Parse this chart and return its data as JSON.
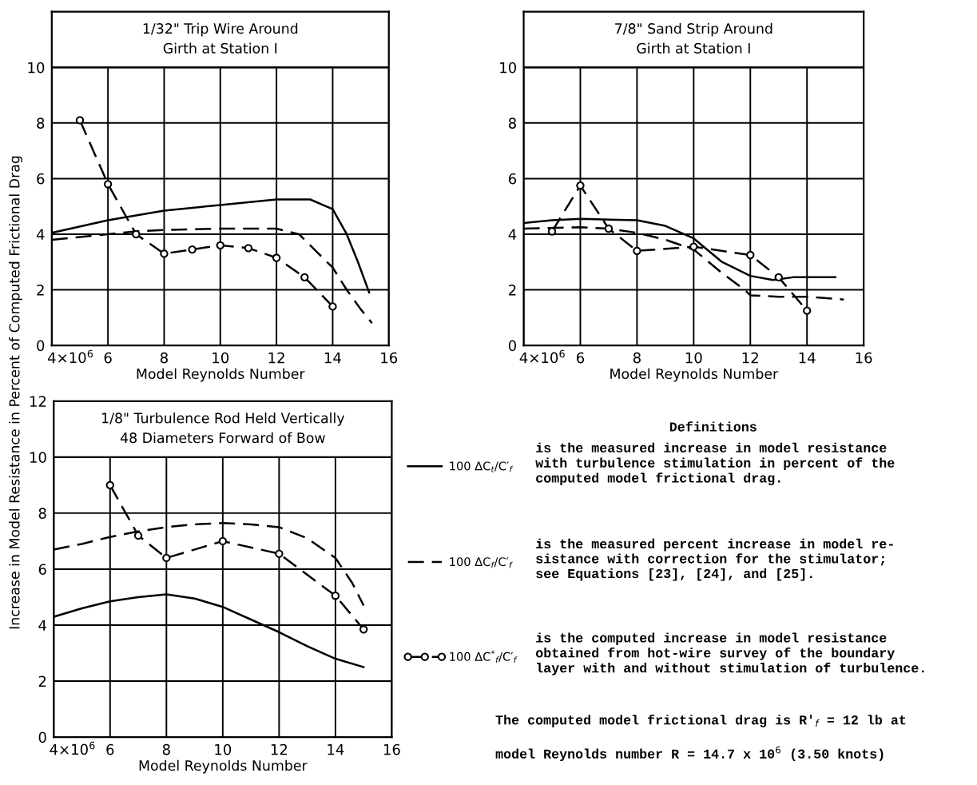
{
  "chart_data": [
    {
      "type": "line",
      "title": "1/32\" Trip Wire Around\nGirth at Station I",
      "xlabel": "Model Reynolds Number",
      "ylabel": "Increase in Model Resistance in Percent of Computed Frictional Drag",
      "xlim": [
        4,
        16
      ],
      "xticks": [
        4,
        6,
        8,
        10,
        12,
        14,
        16
      ],
      "ylim": [
        0,
        12
      ],
      "yticks": [
        0,
        2,
        4,
        6,
        8,
        10
      ],
      "grid": true,
      "annotations": [
        "×10$^{6}$"
      ],
      "series": [
        {
          "color": "#000000",
          "line_style": "solid",
          "marker": "none",
          "x": [
            4,
            6,
            8,
            10,
            12,
            13.2,
            14,
            14.5,
            14.9,
            15.3
          ],
          "values": [
            4.05,
            4.5,
            4.85,
            5.05,
            5.25,
            5.25,
            4.9,
            4.0,
            3.0,
            1.9
          ]
        },
        {
          "color": "#000000",
          "line_style": "dashed",
          "marker": "none",
          "x": [
            4,
            5,
            6,
            7,
            8,
            10,
            12,
            12.8,
            13.5,
            14,
            14.5,
            15,
            15.4
          ],
          "values": [
            3.8,
            3.9,
            4.0,
            4.1,
            4.15,
            4.2,
            4.2,
            4.0,
            3.3,
            2.8,
            2.0,
            1.3,
            0.8
          ]
        },
        {
          "color": "#000000",
          "line_style": "dashed",
          "marker": "circle",
          "x": [
            5,
            6,
            7,
            8,
            9,
            10,
            11,
            12,
            13,
            14
          ],
          "values": [
            8.1,
            5.8,
            4.0,
            3.3,
            3.45,
            3.6,
            3.5,
            3.15,
            2.45,
            1.4
          ]
        }
      ]
    },
    {
      "type": "line",
      "title": "7/8\" Sand Strip Around\nGirth at Station I",
      "xlabel": "Model Reynolds Number",
      "xlim": [
        4,
        16
      ],
      "xticks": [
        4,
        6,
        8,
        10,
        12,
        14,
        16
      ],
      "ylim": [
        0,
        12
      ],
      "yticks": [
        0,
        2,
        4,
        6,
        8,
        10
      ],
      "grid": true,
      "annotations": [
        "×10$^{6}$"
      ],
      "series": [
        {
          "color": "#000000",
          "line_style": "solid",
          "marker": "none",
          "x": [
            4,
            5,
            6,
            8,
            9,
            10,
            11,
            12,
            12.8,
            13.5,
            15
          ],
          "values": [
            4.4,
            4.5,
            4.55,
            4.5,
            4.3,
            3.85,
            3.0,
            2.5,
            2.35,
            2.45,
            2.45
          ]
        },
        {
          "color": "#000000",
          "line_style": "dashed",
          "marker": "none",
          "x": [
            4,
            6,
            7,
            8,
            9,
            10,
            11,
            11.8,
            12,
            13,
            14,
            15.3
          ],
          "values": [
            4.2,
            4.25,
            4.2,
            4.05,
            3.8,
            3.45,
            2.6,
            2.0,
            1.8,
            1.75,
            1.75,
            1.65
          ]
        },
        {
          "color": "#000000",
          "line_style": "dashed",
          "marker": "circle",
          "x": [
            5,
            6,
            7,
            8,
            10,
            12,
            13,
            14
          ],
          "values": [
            4.1,
            5.75,
            4.2,
            3.4,
            3.55,
            3.25,
            2.45,
            1.25
          ]
        }
      ]
    },
    {
      "type": "line",
      "title": "1/8\" Turbulence Rod Held Vertically\n48 Diameters Forward of Bow",
      "xlabel": "Model Reynolds Number",
      "xlim": [
        4,
        16
      ],
      "xticks": [
        4,
        6,
        8,
        10,
        12,
        14,
        16
      ],
      "ylim": [
        0,
        12
      ],
      "yticks": [
        0,
        2,
        4,
        6,
        8,
        10,
        12
      ],
      "grid": true,
      "legend": "right",
      "series": [
        {
          "name": "100 ΔC$_{t}$/C′$_{f}$",
          "color": "#000000",
          "line_style": "solid",
          "marker": "none",
          "x": [
            4,
            5,
            6,
            7,
            8,
            9,
            10,
            11,
            12,
            13,
            14,
            15
          ],
          "values": [
            4.3,
            4.6,
            4.85,
            5.0,
            5.1,
            4.95,
            4.65,
            4.2,
            3.75,
            3.25,
            2.8,
            2.5
          ]
        },
        {
          "name": "100 ΔC$_{f}$/C′$_{f}$",
          "color": "#000000",
          "line_style": "dashed",
          "marker": "none",
          "x": [
            4,
            5,
            6,
            7,
            8,
            9,
            10,
            11,
            12,
            13,
            14,
            14.6,
            15
          ],
          "values": [
            6.7,
            6.9,
            7.15,
            7.35,
            7.5,
            7.6,
            7.65,
            7.6,
            7.5,
            7.1,
            6.4,
            5.5,
            4.7
          ]
        },
        {
          "name": "100 ΔC$^{*}$$_{f}$/C′$_{f}$",
          "color": "#000000",
          "line_style": "dashed",
          "marker": "circle",
          "x": [
            6,
            7,
            8,
            10,
            12,
            14,
            15
          ],
          "values": [
            9.0,
            7.2,
            6.4,
            7.0,
            6.55,
            5.05,
            3.85
          ]
        }
      ],
      "annotations": [
        "×10$^{6}$",
        "Definitions",
        "is the measured increase in model resistance\nwith turbulence stimulation in percent of the\ncomputed model frictional drag.",
        "is the measured percent increase in model re-\nsistance with correction for the stimulator;\nsee Equations [23], [24], and [25].",
        "is the computed increase in model resistance\nobtained from hot-wire survey of the boundary\nlayer with and without stimulation of turbulence.",
        "The computed model frictional drag is R′$_{f}$ = 12 lb at\n\nmodel Reynolds number R = 14.7 x 10$^{6}$ (3.50 knots)"
      ]
    }
  ]
}
